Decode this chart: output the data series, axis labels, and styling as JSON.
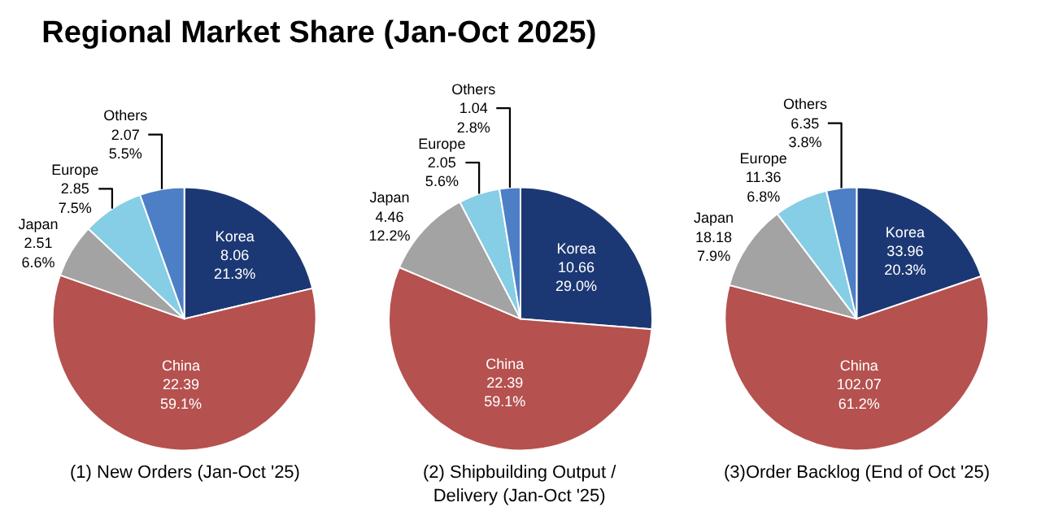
{
  "chart_data": [
    {
      "type": "pie",
      "title": "Regional Market Share (Jan-Oct 2025)",
      "xlabel": "(1) New Orders (Jan-Oct '25)",
      "categories": [
        "Korea",
        "China",
        "Japan",
        "Europe",
        "Others"
      ],
      "values": [
        8.06,
        22.39,
        2.51,
        2.85,
        2.07
      ],
      "value_labels": [
        "8.06\n21.3%",
        "22.39\n59.1%",
        "2.51\n6.6%",
        "2.85\n7.5%",
        "2.07\n5.5%"
      ],
      "colors": [
        "#1c3874",
        "#b5514f",
        "#a3a3a3",
        "#86cde6",
        "#4d7fc6"
      ],
      "legend": false
    },
    {
      "type": "pie",
      "xlabel": "(2) Shipbuilding Output /\nDelivery (Jan-Oct '25)",
      "categories": [
        "Korea",
        "China",
        "Japan",
        "Europe",
        "Others"
      ],
      "values": [
        10.66,
        22.39,
        4.46,
        2.05,
        1.04
      ],
      "value_labels": [
        "10.66\n29.0%",
        "22.39\n59.1%",
        "4.46\n12.2%",
        "2.05\n5.6%",
        "1.04\n2.8%"
      ],
      "colors": [
        "#1c3874",
        "#b5514f",
        "#a3a3a3",
        "#86cde6",
        "#4d7fc6"
      ],
      "legend": false
    },
    {
      "type": "pie",
      "xlabel": "(3)Order Backlog (End of Oct '25)",
      "categories": [
        "Korea",
        "China",
        "Japan",
        "Europe",
        "Others"
      ],
      "values": [
        33.96,
        102.07,
        18.18,
        11.36,
        6.35
      ],
      "value_labels": [
        "33.96\n20.3%",
        "102.07\n61.2%",
        "18.18\n7.9%",
        "11.36\n6.8%",
        "6.35\n3.8%"
      ],
      "colors": [
        "#1c3874",
        "#b5514f",
        "#a3a3a3",
        "#86cde6",
        "#4d7fc6"
      ],
      "legend": false
    }
  ]
}
